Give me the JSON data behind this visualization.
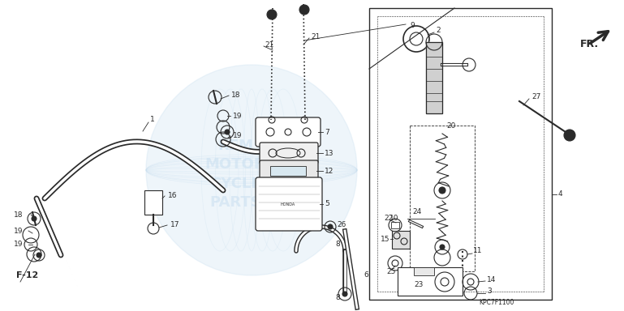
{
  "bg_color": "#ffffff",
  "line_color": "#2a2a2a",
  "light_blue": "#c8dff0",
  "part_code": "KPC7F1100",
  "ref_label": "F-12",
  "direction_label": "FR.",
  "figsize": [
    7.69,
    3.84
  ],
  "dpi": 100
}
